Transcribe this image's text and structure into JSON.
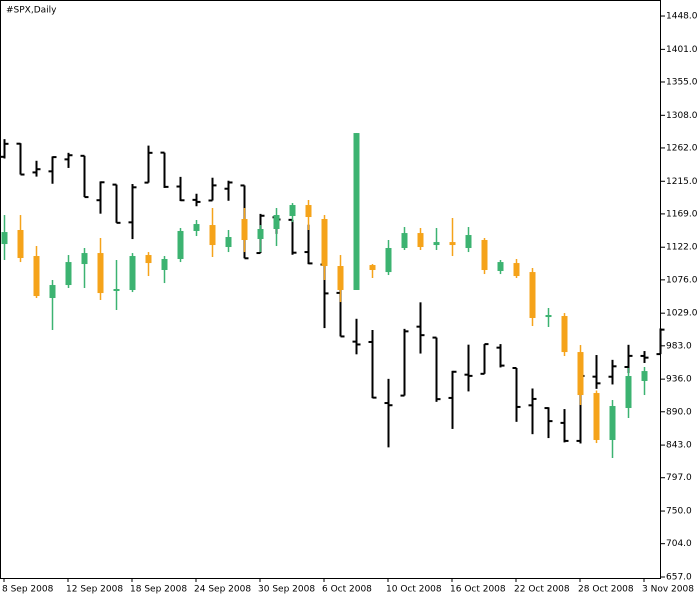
{
  "chart_data": {
    "type": "ohlc",
    "title": "#SPX,Daily",
    "categories": [
      "8 Sep 2008",
      null,
      null,
      null,
      "12 Sep 2008",
      null,
      null,
      null,
      "18 Sep 2008",
      null,
      null,
      null,
      "24 Sep 2008",
      null,
      null,
      null,
      "30 Sep 2008",
      null,
      null,
      null,
      "6 Oct 2008",
      null,
      null,
      null,
      "10 Oct 2008",
      null,
      null,
      null,
      "16 Oct 2008",
      null,
      null,
      null,
      "22 Oct 2008",
      null,
      null,
      null,
      "28 Oct 2008",
      null,
      null,
      null,
      "3 Nov 2008",
      null
    ],
    "ylim": [
      655.6,
      1470.6
    ],
    "yticks": [
      {
        "value": 1448,
        "label": "1448.0"
      },
      {
        "value": 1401,
        "label": "1401.0"
      },
      {
        "value": 1355,
        "label": "1355.0"
      },
      {
        "value": 1308,
        "label": "1308.0"
      },
      {
        "value": 1262,
        "label": "1262.0"
      },
      {
        "value": 1215,
        "label": "1215.0"
      },
      {
        "value": 1169,
        "label": "1169.0"
      },
      {
        "value": 1122,
        "label": "1122.0"
      },
      {
        "value": 1076,
        "label": "1076.0"
      },
      {
        "value": 1029,
        "label": "1029.0"
      },
      {
        "value": 983,
        "label": "983.0"
      },
      {
        "value": 936,
        "label": "936.0"
      },
      {
        "value": 890,
        "label": "890.0"
      },
      {
        "value": 843,
        "label": "843.0"
      },
      {
        "value": 797,
        "label": "797.0"
      },
      {
        "value": 750,
        "label": "750.0"
      },
      {
        "value": 704,
        "label": "704.0"
      },
      {
        "value": 657,
        "label": "657.0"
      }
    ],
    "series": [
      {
        "style": "bar",
        "color": "#000000",
        "open": [
          1249.5,
          1268.0,
          1227.5,
          1229.0,
          1245.9,
          1250.9,
          1188.3,
          1210.3,
          1157.1,
          1213.1,
          1255.4,
          1207.6,
          1188.8,
          1187.9,
          1204.5,
          1209.1,
          1113.8,
          1164.2,
          1160.6,
          1115.2,
          1097.6,
          1057.6,
          988.9,
          988.4,
          902.3,
          912.8,
          1010.0,
          994.6,
          909.5,
          942.3,
          943.5,
          980.4,
          951.7,
          899.1,
          895.2,
          874.3,
          848.9,
          939.5,
          939.4,
          953.1,
          968.7,
          971.3
        ],
        "high": [
          1274.4,
          1268.7,
          1243.9,
          1250.0,
          1255.1,
          1250.9,
          1214.8,
          1210.3,
          1211.1,
          1265.3,
          1255.4,
          1221.2,
          1197.4,
          1220.0,
          1215.8,
          1209.1,
          1169.0,
          1167.0,
          1160.6,
          1153.8,
          1097.6,
          1072.9,
          1021.1,
          1005.3,
          936.4,
          1006.9,
          1044.3,
          994.6,
          947.7,
          984.6,
          985.4,
          985.4,
          951.7,
          922.8,
          896.3,
          893.8,
          940.5,
          970.0,
          963.2,
          984.4,
          975.6,
          1007.5
        ],
        "low": [
          1247.1,
          1224.5,
          1221.6,
          1211.5,
          1233.8,
          1192.7,
          1169.3,
          1156.4,
          1133.5,
          1213.1,
          1205.6,
          1187.1,
          1179.8,
          1187.9,
          1187.5,
          1106.4,
          1113.8,
          1140.8,
          1111.4,
          1098.1,
          1008.0,
          996.2,
          971.0,
          909.2,
          839.8,
          912.8,
          972.1,
          904.0,
          865.8,
          918.7,
          943.5,
          952.5,
          875.8,
          858.4,
          852.9,
          846.8,
          845.3,
          922.3,
          928.5,
          944.6,
          958.8,
          971.3
        ],
        "close": [
          1267.8,
          1224.5,
          1232.0,
          1249.1,
          1251.7,
          1192.7,
          1213.6,
          1156.4,
          1206.5,
          1255.1,
          1207.1,
          1188.2,
          1185.9,
          1209.2,
          1213.3,
          1106.4,
          1166.4,
          1161.1,
          1114.3,
          1099.2,
          1056.9,
          996.2,
          984.9,
          909.9,
          899.2,
          1003.4,
          998.0,
          907.8,
          946.4,
          940.6,
          985.4,
          955.1,
          896.8,
          908.1,
          876.8,
          848.9,
          940.5,
          930.1,
          954.1,
          968.8,
          966.3,
          1005.8
        ]
      },
      {
        "style": "candle",
        "up_color": "#3cb371",
        "down_color": "#f5a31a",
        "open": [
          1126.5,
          1146.3,
          1109.6,
          1050.4,
          1068.7,
          1098.3,
          1113.8,
          1060.3,
          1061.7,
          1111.0,
          1089.9,
          1105.4,
          1144.9,
          1153.3,
          1122.3,
          1161.8,
          1133.6,
          1147.7,
          1166.0,
          1181.5,
          1161.8,
          1095.5,
          1061.7,
          1096.9,
          1087.0,
          1120.9,
          1142.0,
          1125.1,
          1129.3,
          1120.9,
          1132.2,
          1088.5,
          1099.7,
          1087.0,
          1023.6,
          1025.0,
          974.2,
          916.4,
          850.2,
          895.3,
          933.4,
          null
        ],
        "high": [
          1167.4,
          1167.4,
          1123.7,
          1075.8,
          1111.0,
          1120.9,
          1135.0,
          1104.0,
          1113.8,
          1115.2,
          1109.6,
          1149.1,
          1160.4,
          1177.3,
          1146.3,
          1177.3,
          1153.3,
          1177.3,
          1184.3,
          1188.6,
          1167.4,
          1111.0,
          1283.0,
          1098.3,
          1132.2,
          1150.5,
          1149.1,
          1149.1,
          1163.2,
          1150.5,
          1135.0,
          1104.0,
          1105.4,
          1092.7,
          1036.3,
          1029.2,
          984.1,
          920.0,
          906.6,
          951.7,
          953.1,
          null
        ],
        "low": [
          1104.0,
          1101.1,
          1050.4,
          1005.3,
          1064.5,
          1064.5,
          1047.6,
          1033.5,
          1058.8,
          1081.4,
          1071.5,
          1101.1,
          1137.8,
          1108.2,
          1115.2,
          1115.2,
          1115.2,
          1123.7,
          1157.5,
          1146.3,
          1075.8,
          1044.7,
          1061.7,
          1078.6,
          1082.8,
          1118.1,
          1118.1,
          1118.1,
          1109.6,
          1115.2,
          1084.2,
          1084.2,
          1078.6,
          1010.9,
          1009.5,
          968.6,
          899.5,
          845.9,
          824.8,
          881.2,
          913.6,
          null
        ],
        "close": [
          1143.4,
          1106.8,
          1053.2,
          1068.7,
          1101.1,
          1113.8,
          1057.4,
          1063.1,
          1109.6,
          1099.7,
          1105.4,
          1144.9,
          1154.7,
          1125.1,
          1136.4,
          1132.2,
          1147.7,
          1167.4,
          1181.5,
          1164.6,
          1095.5,
          1061.7,
          1283.0,
          1089.9,
          1120.9,
          1142.0,
          1122.3,
          1129.3,
          1125.1,
          1139.2,
          1089.9,
          1101.1,
          1081.4,
          1022.2,
          1026.4,
          974.2,
          913.6,
          850.2,
          898.1,
          940.4,
          947.4,
          null
        ]
      }
    ]
  }
}
